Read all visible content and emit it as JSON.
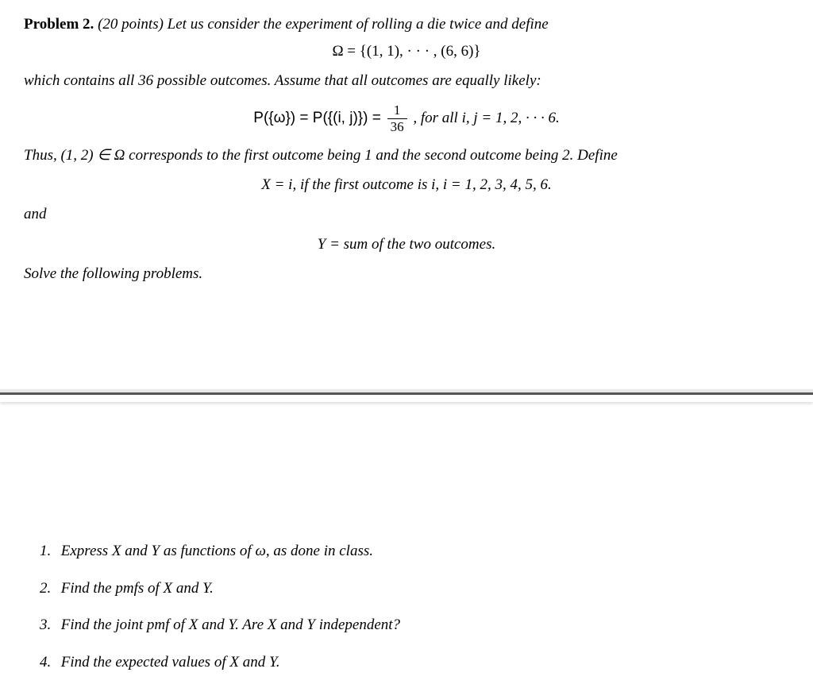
{
  "header": {
    "problem_label": "Problem 2.",
    "points": "(20 points)",
    "intro": "Let us consider the experiment of rolling a die twice and define"
  },
  "equations": {
    "omega_def": "Ω = {(1, 1), · · · , (6, 6)}",
    "outcomes_text": "which contains all 36 possible outcomes. Assume that all outcomes are equally likely:",
    "prob_left": "P({ω}) = P({(i, j)}) =",
    "prob_frac_num": "1",
    "prob_frac_den": "36",
    "prob_right": ",    for all i, j = 1, 2, · · · 6.",
    "thus_text": "Thus, (1, 2) ∈ Ω corresponds to the first outcome being 1 and the second outcome being 2. Define",
    "x_def": "X = i,    if the first outcome is  i,    i = 1, 2, 3, 4, 5, 6.",
    "and_text": "and",
    "y_def": "Y = sum of the two outcomes.",
    "solve_text": "Solve the following problems."
  },
  "questions": {
    "q1_num": "1.",
    "q1_text": "Express X and Y as functions of ω, as done in class.",
    "q2_num": "2.",
    "q2_text": "Find the pmfs of X and Y.",
    "q3_num": "3.",
    "q3_text": "Find the joint pmf of X and Y. Are X and Y independent?",
    "q4_num": "4.",
    "q4_text": "Find the expected values of X and Y."
  }
}
